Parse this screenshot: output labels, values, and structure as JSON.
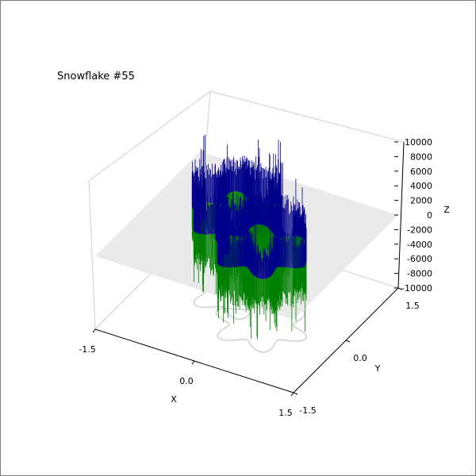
{
  "chart_data": {
    "type": "surface3d",
    "title": "Snowflake #55",
    "xlabel": "X",
    "ylabel": "Y",
    "zlabel": "Z",
    "xlim": [
      -1.5,
      1.5
    ],
    "ylim": [
      -1.5,
      1.5
    ],
    "zlim": [
      -10000,
      10000
    ],
    "x_ticks": [
      "-1.5",
      "0.0",
      "1.5"
    ],
    "y_ticks": [
      "-1.5",
      "0.0",
      "1.5"
    ],
    "z_ticks": [
      "-10000",
      "-8000",
      "-6000",
      "-4000",
      "-2000",
      "0",
      "2000",
      "4000",
      "6000",
      "8000",
      "10000"
    ],
    "series": [
      {
        "color": "#00008b",
        "z_sign": 1
      },
      {
        "color": "#008000",
        "z_sign": -1
      }
    ],
    "snowflake_rings": [
      {
        "cx": -0.3,
        "cy": 0.3,
        "radius": 0.55,
        "lobes": 6
      },
      {
        "cx": 0.35,
        "cy": -0.25,
        "radius": 0.55,
        "lobes": 6
      }
    ],
    "plane_z": 0,
    "plane_color": "#e8e8e8",
    "grid": true
  }
}
